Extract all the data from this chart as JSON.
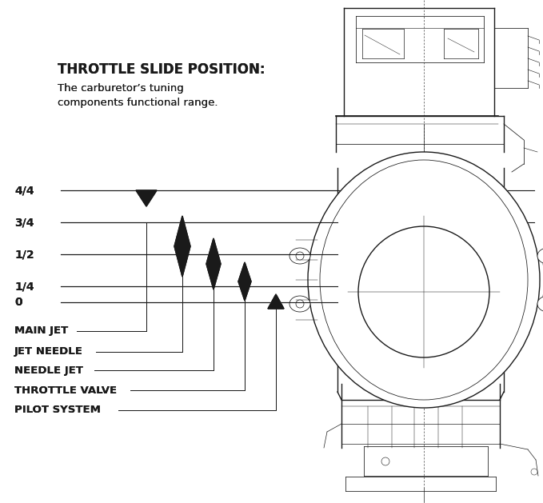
{
  "title_bold": "THROTTLE SLIDE POSITION:",
  "title_sub": "The carburetor’s tuning\ncomponents functional range.",
  "bg_color": "#ffffff",
  "line_color": "#1a1a1a",
  "throttle_labels": [
    "4/4",
    "3/4",
    "1/2",
    "1/4",
    "0"
  ],
  "component_labels": [
    "MAIN JET",
    "JET NEEDLE",
    "NEEDLE JET",
    "THROTTLE VALVE",
    "PILOT SYSTEM"
  ],
  "fig_width": 6.79,
  "fig_height": 6.29,
  "dpi": 100
}
